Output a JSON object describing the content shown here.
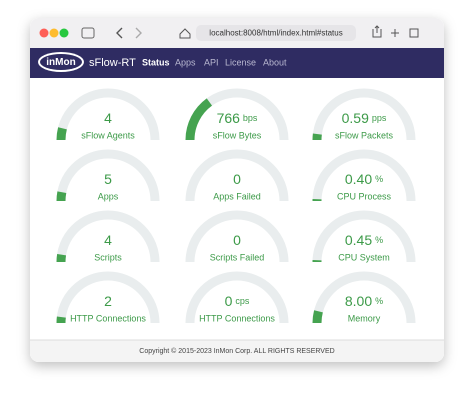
{
  "browser": {
    "url": "localhost:8008/html/index.html#status"
  },
  "navbar": {
    "logo": "inMon",
    "brand": "sFlow-RT",
    "items": [
      "Status",
      "Apps",
      "API",
      "License",
      "About"
    ]
  },
  "gauges": [
    {
      "value": "4",
      "label": "sFlow Agents"
    },
    {
      "value": "766",
      "unit": "bps",
      "label": "sFlow Bytes"
    },
    {
      "value": "0.59",
      "unit": "pps",
      "label": "sFlow Packets"
    },
    {
      "value": "5",
      "label": "Apps"
    },
    {
      "value": "0",
      "label": "Apps Failed"
    },
    {
      "value": "0.40",
      "unit": "%",
      "label": "CPU Process"
    },
    {
      "value": "4",
      "label": "Scripts"
    },
    {
      "value": "0",
      "label": "Scripts Failed"
    },
    {
      "value": "0.45",
      "unit": "%",
      "label": "CPU System"
    },
    {
      "value": "2",
      "label": "HTTP Connections"
    },
    {
      "value": "0",
      "unit": "cps",
      "label": "HTTP Connections"
    },
    {
      "value": "8.00",
      "unit": "%",
      "label": "Memory"
    }
  ],
  "footer": {
    "text": "Copyright © 2015-2023 InMon Corp. ALL RIGHTS RESERVED"
  }
}
